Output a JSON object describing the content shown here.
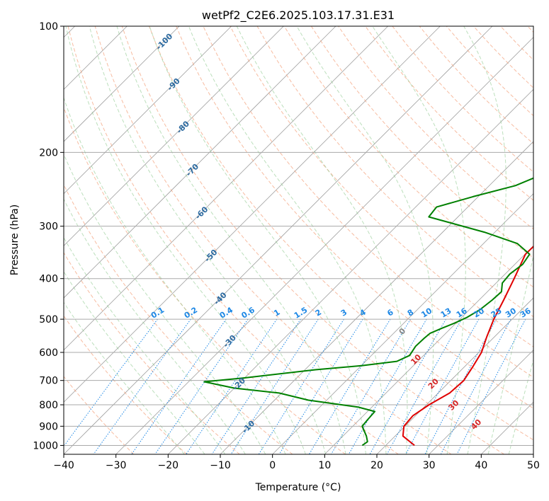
{
  "chart_data": {
    "type": "line",
    "title": "wetPf2_C2E6.2025.103.17.31.E31",
    "xlabel": "Temperature (°C)",
    "ylabel": "Pressure (hPa)",
    "xlim": [
      -40,
      50
    ],
    "ylim": [
      1050,
      100
    ],
    "y_scale": "log",
    "x_ticks": [
      -40,
      -30,
      -20,
      -10,
      0,
      10,
      20,
      30,
      40,
      50
    ],
    "y_ticks": [
      100,
      200,
      300,
      400,
      500,
      600,
      700,
      800,
      900,
      1000
    ],
    "grid": true,
    "series": [
      {
        "color": "#e00000",
        "points": [
          [
            25.5,
            1000
          ],
          [
            21.5,
            950
          ],
          [
            19.8,
            900
          ],
          [
            19.5,
            850
          ],
          [
            20.5,
            800
          ],
          [
            22.2,
            750
          ],
          [
            22.5,
            700
          ],
          [
            21.6,
            650
          ],
          [
            20.5,
            600
          ],
          [
            18.5,
            550
          ],
          [
            16.5,
            500
          ],
          [
            14.7,
            450
          ],
          [
            12.6,
            400
          ],
          [
            10.1,
            350
          ],
          [
            10.2,
            320
          ],
          [
            10.2,
            300
          ],
          [
            9.5,
            270
          ],
          [
            7.4,
            250
          ],
          [
            5.0,
            230
          ],
          [
            2.9,
            210
          ],
          [
            1.7,
            190
          ],
          [
            1.4,
            175
          ],
          [
            2.7,
            160
          ],
          [
            2.5,
            145
          ],
          [
            2.4,
            135
          ],
          [
            4.3,
            125
          ],
          [
            5.8,
            115
          ],
          [
            6.3,
            105
          ],
          [
            6.2,
            100
          ]
        ]
      },
      {
        "color": "#008000",
        "points": [
          [
            15.5,
            1000
          ],
          [
            15.8,
            980
          ],
          [
            14.5,
            950
          ],
          [
            11.8,
            900
          ],
          [
            11.6,
            870
          ],
          [
            11.4,
            830
          ],
          [
            7.3,
            810
          ],
          [
            -3.5,
            780
          ],
          [
            -10.5,
            750
          ],
          [
            -20.0,
            730
          ],
          [
            -27.0,
            705
          ],
          [
            -20.0,
            690
          ],
          [
            -8.0,
            660
          ],
          [
            0.2,
            645
          ],
          [
            6.0,
            630
          ],
          [
            7.3,
            610
          ],
          [
            6.7,
            580
          ],
          [
            6.8,
            555
          ],
          [
            7.0,
            540
          ],
          [
            8.3,
            525
          ],
          [
            9.8,
            510
          ],
          [
            11.0,
            495
          ],
          [
            12.0,
            475
          ],
          [
            12.5,
            450
          ],
          [
            12.7,
            430
          ],
          [
            11.2,
            410
          ],
          [
            10.9,
            390
          ],
          [
            11.5,
            370
          ],
          [
            10.9,
            350
          ],
          [
            6.5,
            330
          ],
          [
            -2.0,
            310
          ],
          [
            -15.6,
            285
          ],
          [
            -16.0,
            270
          ],
          [
            -11.0,
            255
          ],
          [
            -5.0,
            240
          ],
          [
            -1.8,
            225
          ],
          [
            -1.5,
            212
          ],
          [
            -2.0,
            205
          ],
          [
            -1.6,
            197
          ],
          [
            -1.1,
            187
          ],
          [
            -3.2,
            175
          ],
          [
            -5.0,
            165
          ],
          [
            -5.2,
            155
          ],
          [
            -5.5,
            148
          ],
          [
            -5.2,
            140
          ],
          [
            -4.7,
            130
          ],
          [
            -3.8,
            120
          ],
          [
            -2.3,
            110
          ],
          [
            -0.4,
            100
          ]
        ]
      }
    ],
    "dry_adiabat_labels": [
      "-100",
      "-90",
      "-80",
      "-70",
      "-60",
      "-50",
      "-40",
      "-30",
      "-20",
      "-10"
    ],
    "mixing_ratio_labels": [
      "0.1",
      "0.2",
      "0.4",
      "0.6",
      "1",
      "1.5",
      "2",
      "3",
      "4",
      "6",
      "8",
      "10",
      "13",
      "16",
      "20",
      "25",
      "30",
      "36"
    ],
    "moist_adiabat_labels": [
      "0",
      "10",
      "20",
      "30",
      "40"
    ],
    "colors": {
      "dry_adiabat": "#f4a582",
      "moist_adiabat": "#8fc98f",
      "mixing_ratio": "#1e88e5",
      "isotherm": "#888888",
      "dry_label": "#2c6aa0",
      "moist_label": "#d62728",
      "zero_label": "#888888"
    }
  }
}
